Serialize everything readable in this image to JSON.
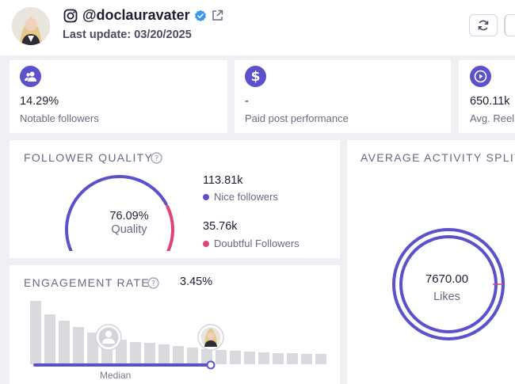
{
  "profile": {
    "handle": "@doclauravater",
    "last_update": "Last update: 03/20/2025"
  },
  "stats": [
    {
      "icon": "users-icon",
      "value": "14.29%",
      "label": "Notable followers"
    },
    {
      "icon": "dollar-icon",
      "value": "-",
      "label": "Paid post performance"
    },
    {
      "icon": "play-icon",
      "value": "650.11k",
      "label": "Avg. Reel"
    }
  ],
  "follower_quality": {
    "title": "FOLLOWER QUALITY",
    "percent": "76.09%",
    "percent_value": 76.09,
    "label": "Quality",
    "nice_value": "113.81k",
    "nice_label": "Nice followers",
    "doubtful_value": "35.76k",
    "doubtful_label": "Doubtful Followers"
  },
  "engagement": {
    "title": "ENGAGEMENT RATE",
    "value": "3.45%",
    "median_label": "Median"
  },
  "activity": {
    "title": "AVERAGE ACTIVITY SPLIT",
    "value": "7670.00",
    "label": "Likes"
  },
  "colors": {
    "accent": "#5b51cb",
    "nice": "#5b51cb",
    "doubtful": "#e0427a",
    "bar": "#d9d9de"
  }
}
